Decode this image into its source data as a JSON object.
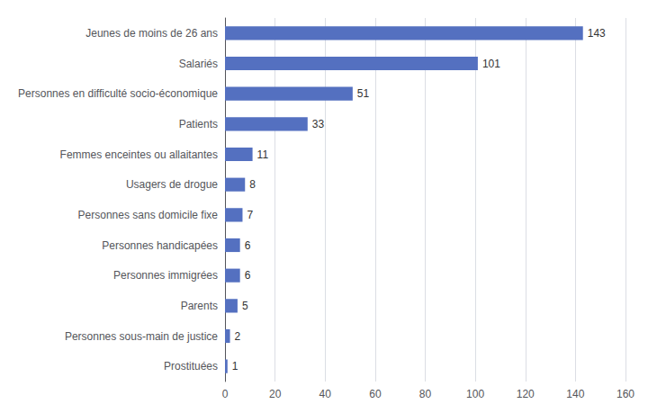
{
  "chart_data": {
    "type": "bar",
    "orientation": "horizontal",
    "categories": [
      "Prostituées",
      "Personnes sous-main de justice",
      "Parents",
      "Personnes immigrées",
      "Personnes handicapées",
      "Personnes sans domicile fixe",
      "Usagers de drogue",
      "Femmes enceintes ou allaitantes",
      "Patients",
      "Personnes en difficulté socio-économique",
      "Salariés",
      "Jeunes de moins de 26 ans"
    ],
    "values": [
      1,
      2,
      5,
      6,
      6,
      7,
      8,
      11,
      33,
      51,
      101,
      143
    ],
    "color": "#5470c0",
    "xlim": [
      0,
      160
    ],
    "xticks": [
      0,
      20,
      40,
      60,
      80,
      100,
      120,
      140,
      160
    ],
    "grid": true,
    "data_labels": true
  }
}
